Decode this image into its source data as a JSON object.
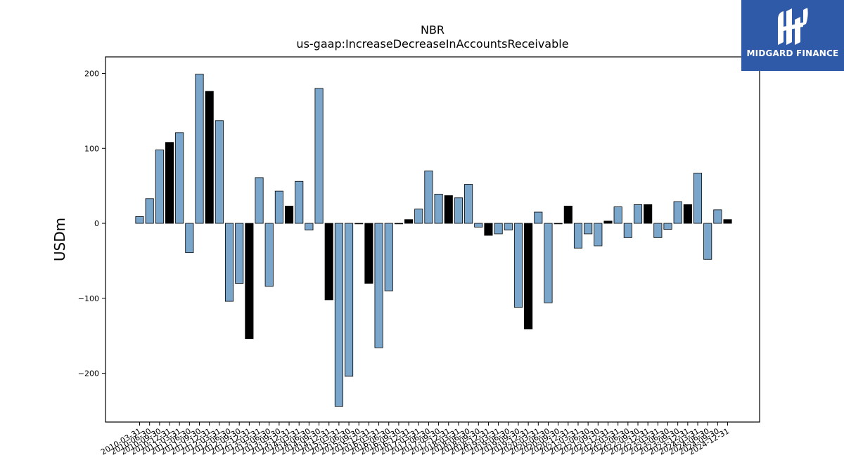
{
  "brand": {
    "name": "MIDGARD FINANCE",
    "bg_color": "#2f5aa8"
  },
  "chart_data": {
    "type": "bar",
    "title": "NBR",
    "subtitle": "us-gaap:IncreaseDecreaseInAccountsReceivable",
    "ylabel": "USDm",
    "xlabel": "",
    "ylim": [
      -265,
      222
    ],
    "yticks": [
      -200,
      -100,
      0,
      100,
      200
    ],
    "grid": false,
    "colors": {
      "quarterly": "#7aa6cc",
      "annual": "#000000"
    },
    "categories": [
      "2010-03-31",
      "2010-06-30",
      "2010-09-30",
      "2010-12-31",
      "2011-03-31",
      "2011-06-30",
      "2011-09-30",
      "2011-12-31",
      "2012-03-31",
      "2012-06-30",
      "2012-09-30",
      "2012-12-31",
      "2013-03-31",
      "2013-06-30",
      "2013-09-30",
      "2013-12-31",
      "2014-03-31",
      "2014-06-30",
      "2014-09-30",
      "2014-12-31",
      "2015-03-31",
      "2015-06-30",
      "2015-09-30",
      "2015-12-31",
      "2016-03-31",
      "2016-06-30",
      "2016-09-30",
      "2016-12-31",
      "2017-03-31",
      "2017-06-30",
      "2017-09-30",
      "2017-12-31",
      "2018-03-31",
      "2018-06-30",
      "2018-09-30",
      "2018-12-31",
      "2019-03-31",
      "2019-06-30",
      "2019-09-30",
      "2019-12-31",
      "2020-03-31",
      "2020-06-30",
      "2020-09-30",
      "2020-12-31",
      "2021-03-31",
      "2021-06-30",
      "2021-09-30",
      "2021-12-31",
      "2022-03-31",
      "2022-06-30",
      "2022-09-30",
      "2022-12-31",
      "2023-03-31",
      "2023-06-30",
      "2023-09-30",
      "2023-12-31",
      "2024-03-31",
      "2024-06-30",
      "2024-09-30",
      "2024-12-31"
    ],
    "values": [
      9,
      33,
      98,
      108,
      121,
      -39,
      199,
      176,
      137,
      -104,
      -80,
      -154,
      61,
      -84,
      43,
      23,
      56,
      -9,
      180,
      -102,
      -244,
      -204,
      0,
      -80,
      -166,
      -90,
      0,
      5,
      19,
      70,
      39,
      37,
      34,
      52,
      -5,
      -16,
      -14,
      -9,
      -112,
      -141,
      15,
      -106,
      0,
      23,
      -33,
      -14,
      -30,
      3,
      22,
      -19,
      25,
      25,
      -19,
      -8,
      29,
      25,
      67,
      -48,
      18,
      5
    ],
    "annual": [
      0,
      0,
      0,
      1,
      0,
      0,
      0,
      1,
      0,
      0,
      0,
      1,
      0,
      0,
      0,
      1,
      0,
      0,
      0,
      1,
      0,
      0,
      0,
      1,
      0,
      0,
      0,
      1,
      0,
      0,
      0,
      1,
      0,
      0,
      0,
      1,
      0,
      0,
      0,
      1,
      0,
      0,
      0,
      1,
      0,
      0,
      0,
      1,
      0,
      0,
      0,
      1,
      0,
      0,
      0,
      1,
      0,
      0,
      0,
      1
    ]
  }
}
